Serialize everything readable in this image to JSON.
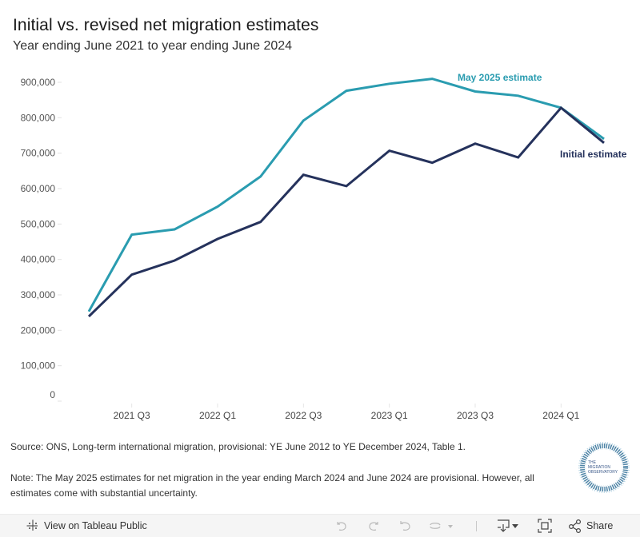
{
  "header": {
    "title": "Initial vs. revised net migration estimates",
    "subtitle": "Year ending June 2021 to year ending June 2024"
  },
  "chart_data": {
    "type": "line",
    "title": "Initial vs. revised net migration estimates",
    "subtitle": "Year ending June 2021 to year ending June 2024",
    "xlabel": "",
    "ylabel": "",
    "x": [
      "2021 Q2",
      "2021 Q3",
      "2021 Q4",
      "2022 Q1",
      "2022 Q2",
      "2022 Q3",
      "2022 Q4",
      "2023 Q1",
      "2023 Q2",
      "2023 Q3",
      "2023 Q4",
      "2024 Q1",
      "2024 Q2"
    ],
    "x_tick_labels": [
      "2021 Q3",
      "2022 Q1",
      "2022 Q3",
      "2023 Q1",
      "2023 Q3",
      "2024 Q1"
    ],
    "y_ticks": [
      0,
      100000,
      200000,
      300000,
      400000,
      500000,
      600000,
      700000,
      800000,
      900000
    ],
    "y_tick_labels": [
      "0",
      "100,000",
      "200,000",
      "300,000",
      "400,000",
      "500,000",
      "600,000",
      "700,000",
      "800,000",
      "900,000"
    ],
    "ylim": [
      0,
      900000
    ],
    "grid": false,
    "series": [
      {
        "name": "May 2025 estimate",
        "color": "#2a9cb0",
        "values": [
          253000,
          470000,
          485000,
          549000,
          634000,
          792000,
          876000,
          896000,
          910000,
          874000,
          862000,
          828000,
          740000
        ]
      },
      {
        "name": "Initial estimate",
        "color": "#25325c",
        "values": [
          239000,
          357000,
          397000,
          458000,
          506000,
          639000,
          607000,
          707000,
          673000,
          727000,
          688000,
          828000,
          729000
        ]
      }
    ],
    "legend": "inline-labels"
  },
  "notes": {
    "source": "Source: ONS, Long-term international migration, provisional: YE June 2012 to YE December 2024, Table 1.",
    "note": "Note: The May 2025 estimates for net migration in the year ending March 2024 and June 2024 are provisional. However, all estimates come with substantial uncertainty."
  },
  "logo": {
    "line1": "THE",
    "line2": "MIGRATION",
    "line3": "OBSERVATORY"
  },
  "toolbar": {
    "view_on_tableau": "View on Tableau Public",
    "share": "Share",
    "icons": [
      "tableau-logo-icon",
      "undo-icon",
      "redo-icon",
      "revert-icon",
      "refresh-icon",
      "download-icon",
      "fullscreen-icon",
      "share-icon"
    ]
  }
}
